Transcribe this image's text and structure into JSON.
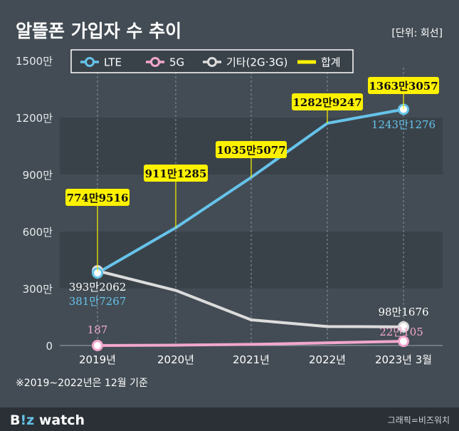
{
  "title": "알뜰폰 가입자 수 추이",
  "unit_note": "[단위: 회선]",
  "footnote": "※2019~2022년은 12월 기준",
  "brand": {
    "name_part1": "B",
    "name_part2": "!z",
    "name_part3": " watch"
  },
  "credit": "그래픽=비즈워치",
  "colors": {
    "background": "#434c54",
    "band": "#3a4249",
    "footer": "#2a3036",
    "lte": "#66c3ea",
    "fiveg": "#f2a7cc",
    "other": "#dcdcdc",
    "total": "#fff200"
  },
  "chart_data": {
    "type": "line",
    "categories": [
      "2019년",
      "2020년",
      "2021년",
      "2022년",
      "2023년 3월"
    ],
    "y_ticks": [
      0,
      300,
      600,
      900,
      1200,
      1500
    ],
    "y_tick_labels": [
      "0",
      "300만",
      "600만",
      "900만",
      "1200만",
      "1500만"
    ],
    "ylim": [
      0,
      1500
    ],
    "grid": "alternating bands",
    "legend_position": "top",
    "series": [
      {
        "key": "lte",
        "name": "LTE",
        "values": [
          381.7267,
          620,
          885,
          1170,
          1243.1276
        ]
      },
      {
        "key": "fiveg",
        "name": "5G",
        "values": [
          0.0187,
          2,
          6,
          14,
          22.0105
        ]
      },
      {
        "key": "other",
        "name": "기타(2G·3G)",
        "values": [
          393.2062,
          290,
          135,
          100,
          98.1676
        ]
      }
    ],
    "totals": {
      "name": "합계",
      "values": [
        774.9516,
        911.1285,
        1035.5077,
        1282.9247,
        1363.3057
      ],
      "labels": [
        "774만9516",
        "911만1285",
        "1035만5077",
        "1282만9247",
        "1363만3057"
      ]
    },
    "point_labels": [
      {
        "series": "other",
        "index": 0,
        "text": "393만2062"
      },
      {
        "series": "lte",
        "index": 0,
        "text": "381만7267"
      },
      {
        "series": "fiveg",
        "index": 0,
        "text": "187"
      },
      {
        "series": "lte",
        "index": 4,
        "text": "1243만1276"
      },
      {
        "series": "other",
        "index": 4,
        "text": "98만1676"
      },
      {
        "series": "fiveg",
        "index": 4,
        "text": "22만105"
      }
    ]
  }
}
